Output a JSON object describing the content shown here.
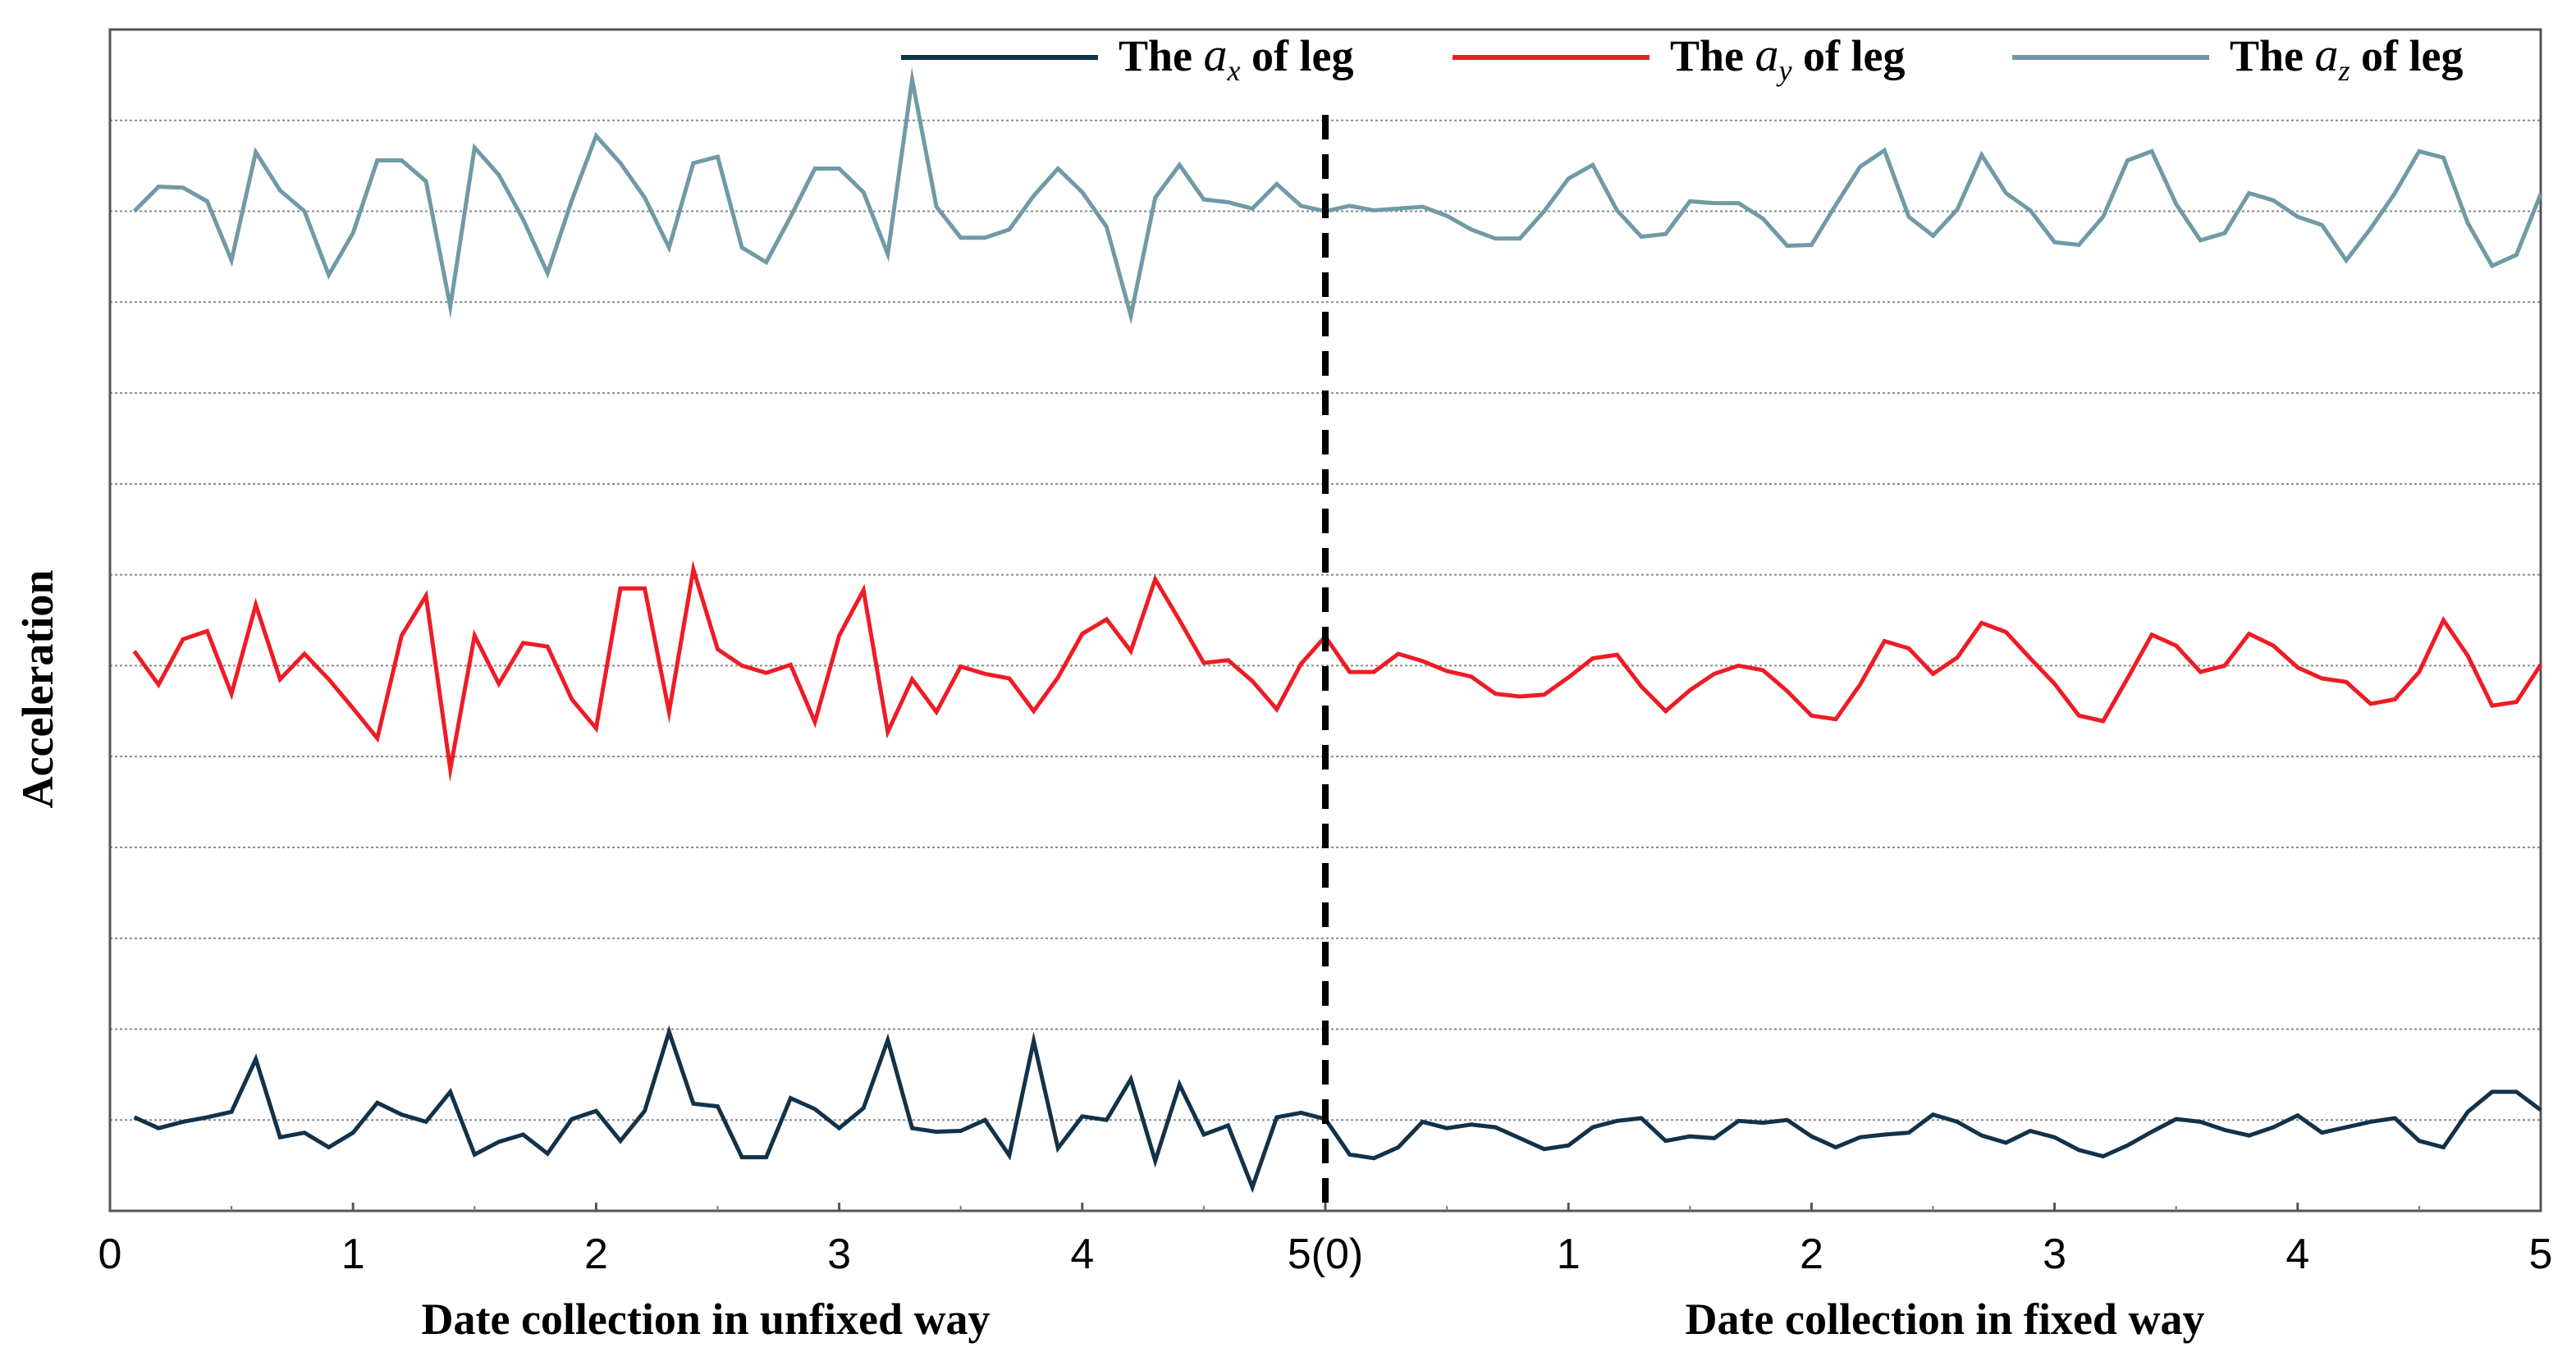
{
  "chart_data": {
    "type": "line",
    "title": "",
    "ylabel": "Acceleration",
    "xlabel_left": "Date collection in unfixed way",
    "xlabel_right": "Date collection in fixed way",
    "x_range": [
      0,
      10
    ],
    "y_range": [
      0,
      13
    ],
    "xticks": [
      {
        "value": 0,
        "label": "0"
      },
      {
        "value": 1,
        "label": "1"
      },
      {
        "value": 2,
        "label": "2"
      },
      {
        "value": 3,
        "label": "3"
      },
      {
        "value": 4,
        "label": "4"
      },
      {
        "value": 5,
        "label": "5(0)"
      },
      {
        "value": 6,
        "label": "1"
      },
      {
        "value": 7,
        "label": "2"
      },
      {
        "value": 8,
        "label": "3"
      },
      {
        "value": 9,
        "label": "4"
      },
      {
        "value": 10,
        "label": "5"
      }
    ],
    "gridlines_y": [
      1,
      2,
      3,
      4,
      5,
      6,
      7,
      8,
      9,
      10,
      11,
      12
    ],
    "divider_x": 5,
    "legend_position": "top-right",
    "series": [
      {
        "name": "The a_x of leg",
        "legend_prefix": "The ",
        "legend_var": "a",
        "legend_sub": "x",
        "legend_suffix": " of leg",
        "color": "#12324a",
        "x": [
          0.1,
          0.2,
          0.3,
          0.4,
          0.5,
          0.6,
          0.7,
          0.8,
          0.9,
          1.0,
          1.1,
          1.2,
          1.3,
          1.4,
          1.5,
          1.6,
          1.7,
          1.8,
          1.9,
          2.0,
          2.1,
          2.2,
          2.3,
          2.4,
          2.5,
          2.6,
          2.7,
          2.8,
          2.9,
          3.0,
          3.1,
          3.2,
          3.3,
          3.4,
          3.5,
          3.6,
          3.7,
          3.8,
          3.9,
          4.0,
          4.1,
          4.2,
          4.3,
          4.4,
          4.5,
          4.6,
          4.7,
          4.8,
          4.9,
          5.0,
          5.1,
          5.2,
          5.3,
          5.4,
          5.5,
          5.6,
          5.7,
          5.8,
          5.9,
          6.0,
          6.1,
          6.2,
          6.3,
          6.4,
          6.5,
          6.6,
          6.7,
          6.8,
          6.9,
          7.0,
          7.1,
          7.2,
          7.3,
          7.4,
          7.5,
          7.6,
          7.7,
          7.8,
          7.9,
          8.0,
          8.1,
          8.2,
          8.3,
          8.4,
          8.5,
          8.6,
          8.7,
          8.8,
          8.9,
          9.0,
          9.1,
          9.2,
          9.3,
          9.4,
          9.5,
          9.6,
          9.7,
          9.8,
          9.9,
          10.0
        ],
        "values": [
          1.03,
          0.91,
          0.98,
          1.03,
          1.09,
          1.67,
          0.81,
          0.86,
          0.7,
          0.86,
          1.19,
          1.06,
          0.98,
          1.31,
          0.62,
          0.76,
          0.84,
          0.63,
          1.01,
          1.1,
          0.77,
          1.1,
          1.97,
          1.18,
          1.15,
          0.59,
          0.59,
          1.24,
          1.12,
          0.91,
          1.13,
          1.88,
          0.91,
          0.87,
          0.88,
          1.0,
          0.61,
          1.87,
          0.69,
          1.04,
          1.0,
          1.45,
          0.55,
          1.39,
          0.84,
          0.94,
          0.26,
          1.03,
          1.08,
          1.01,
          0.62,
          0.58,
          0.7,
          0.98,
          0.91,
          0.95,
          0.92,
          0.8,
          0.68,
          0.72,
          0.92,
          0.99,
          1.02,
          0.77,
          0.82,
          0.8,
          0.99,
          0.97,
          1.0,
          0.82,
          0.7,
          0.81,
          0.84,
          0.86,
          1.06,
          0.98,
          0.83,
          0.75,
          0.88,
          0.81,
          0.67,
          0.6,
          0.72,
          0.87,
          1.01,
          0.98,
          0.89,
          0.83,
          0.92,
          1.05,
          0.86,
          0.92,
          0.98,
          1.02,
          0.77,
          0.7,
          1.09,
          1.31,
          1.31,
          1.11
        ]
      },
      {
        "name": "The a_y of leg",
        "legend_prefix": "The ",
        "legend_var": "a",
        "legend_sub": "y",
        "legend_suffix": " of leg",
        "color": "#ee1c25",
        "x": [
          0.1,
          0.2,
          0.3,
          0.4,
          0.5,
          0.6,
          0.7,
          0.8,
          0.9,
          1.0,
          1.1,
          1.2,
          1.3,
          1.4,
          1.5,
          1.6,
          1.7,
          1.8,
          1.9,
          2.0,
          2.1,
          2.2,
          2.3,
          2.4,
          2.5,
          2.6,
          2.7,
          2.8,
          2.9,
          3.0,
          3.1,
          3.2,
          3.3,
          3.4,
          3.5,
          3.6,
          3.7,
          3.8,
          3.9,
          4.0,
          4.1,
          4.2,
          4.3,
          4.4,
          4.5,
          4.6,
          4.7,
          4.8,
          4.9,
          5.0,
          5.1,
          5.2,
          5.3,
          5.4,
          5.5,
          5.6,
          5.7,
          5.8,
          5.9,
          6.0,
          6.1,
          6.2,
          6.3,
          6.4,
          6.5,
          6.6,
          6.7,
          6.8,
          6.9,
          7.0,
          7.1,
          7.2,
          7.3,
          7.4,
          7.5,
          7.6,
          7.7,
          7.8,
          7.9,
          8.0,
          8.1,
          8.2,
          8.3,
          8.4,
          8.5,
          8.6,
          8.7,
          8.8,
          8.9,
          9.0,
          9.1,
          9.2,
          9.3,
          9.4,
          9.5,
          9.6,
          9.7,
          9.8,
          9.9,
          10.0
        ],
        "values": [
          6.16,
          5.79,
          6.29,
          6.38,
          5.69,
          6.67,
          5.85,
          6.13,
          5.85,
          5.53,
          5.2,
          6.33,
          6.77,
          4.86,
          6.33,
          5.8,
          6.25,
          6.21,
          5.63,
          5.31,
          6.85,
          6.85,
          5.49,
          7.06,
          6.18,
          6.0,
          5.92,
          6.01,
          5.38,
          6.33,
          6.83,
          5.27,
          5.85,
          5.49,
          5.99,
          5.91,
          5.86,
          5.5,
          5.87,
          6.35,
          6.51,
          6.16,
          6.95,
          6.5,
          6.03,
          6.06,
          5.83,
          5.52,
          6.02,
          6.32,
          5.93,
          5.93,
          6.13,
          6.05,
          5.94,
          5.88,
          5.69,
          5.66,
          5.68,
          5.87,
          6.08,
          6.12,
          5.77,
          5.5,
          5.73,
          5.91,
          6.0,
          5.95,
          5.72,
          5.45,
          5.41,
          5.79,
          6.27,
          6.19,
          5.91,
          6.09,
          6.47,
          6.37,
          6.08,
          5.8,
          5.45,
          5.39,
          5.86,
          6.34,
          6.22,
          5.93,
          6.0,
          6.35,
          6.22,
          5.98,
          5.86,
          5.82,
          5.58,
          5.63,
          5.93,
          6.5,
          6.11,
          5.56,
          5.6,
          6.01
        ]
      },
      {
        "name": "The a_z of leg",
        "legend_prefix": "The ",
        "legend_var": "a",
        "legend_sub": "z",
        "legend_suffix": " of leg",
        "color": "#6f9aa6",
        "x": [
          0.1,
          0.2,
          0.3,
          0.4,
          0.5,
          0.6,
          0.7,
          0.8,
          0.9,
          1.0,
          1.1,
          1.2,
          1.3,
          1.4,
          1.5,
          1.6,
          1.7,
          1.8,
          1.9,
          2.0,
          2.1,
          2.2,
          2.3,
          2.4,
          2.5,
          2.6,
          2.7,
          2.8,
          2.9,
          3.0,
          3.1,
          3.2,
          3.3,
          3.4,
          3.5,
          3.6,
          3.7,
          3.8,
          3.9,
          4.0,
          4.1,
          4.2,
          4.3,
          4.4,
          4.5,
          4.6,
          4.7,
          4.8,
          4.9,
          5.0,
          5.1,
          5.2,
          5.3,
          5.4,
          5.5,
          5.6,
          5.7,
          5.8,
          5.9,
          6.0,
          6.1,
          6.2,
          6.3,
          6.4,
          6.5,
          6.6,
          6.7,
          6.8,
          6.9,
          7.0,
          7.1,
          7.2,
          7.3,
          7.4,
          7.5,
          7.6,
          7.7,
          7.8,
          7.9,
          8.0,
          8.1,
          8.2,
          8.3,
          8.4,
          8.5,
          8.6,
          8.7,
          8.8,
          8.9,
          9.0,
          9.1,
          9.2,
          9.3,
          9.4,
          9.5,
          9.6,
          9.7,
          9.8,
          9.9,
          10.0
        ],
        "values": [
          11.0,
          11.27,
          11.26,
          11.11,
          10.46,
          11.65,
          11.23,
          11.0,
          10.3,
          10.76,
          11.56,
          11.56,
          11.33,
          9.95,
          11.7,
          11.4,
          10.91,
          10.32,
          11.12,
          11.83,
          11.53,
          11.15,
          10.6,
          11.53,
          11.6,
          10.6,
          10.44,
          10.94,
          11.47,
          11.47,
          11.21,
          10.53,
          12.45,
          11.05,
          10.71,
          10.71,
          10.8,
          11.17,
          11.47,
          11.21,
          10.83,
          9.85,
          11.15,
          11.51,
          11.13,
          11.1,
          11.03,
          11.3,
          11.06,
          11.0,
          11.06,
          11.01,
          11.03,
          11.05,
          10.95,
          10.8,
          10.7,
          10.7,
          11.0,
          11.36,
          11.51,
          11.01,
          10.72,
          10.75,
          11.11,
          11.09,
          11.09,
          10.92,
          10.62,
          10.63,
          11.07,
          11.49,
          11.67,
          10.94,
          10.73,
          11.02,
          11.62,
          11.2,
          11.01,
          10.66,
          10.63,
          10.94,
          11.56,
          11.66,
          11.08,
          10.68,
          10.76,
          11.2,
          11.12,
          10.94,
          10.85,
          10.46,
          10.81,
          11.2,
          11.66,
          11.59,
          10.87,
          10.4,
          10.52,
          11.19
        ]
      }
    ]
  }
}
